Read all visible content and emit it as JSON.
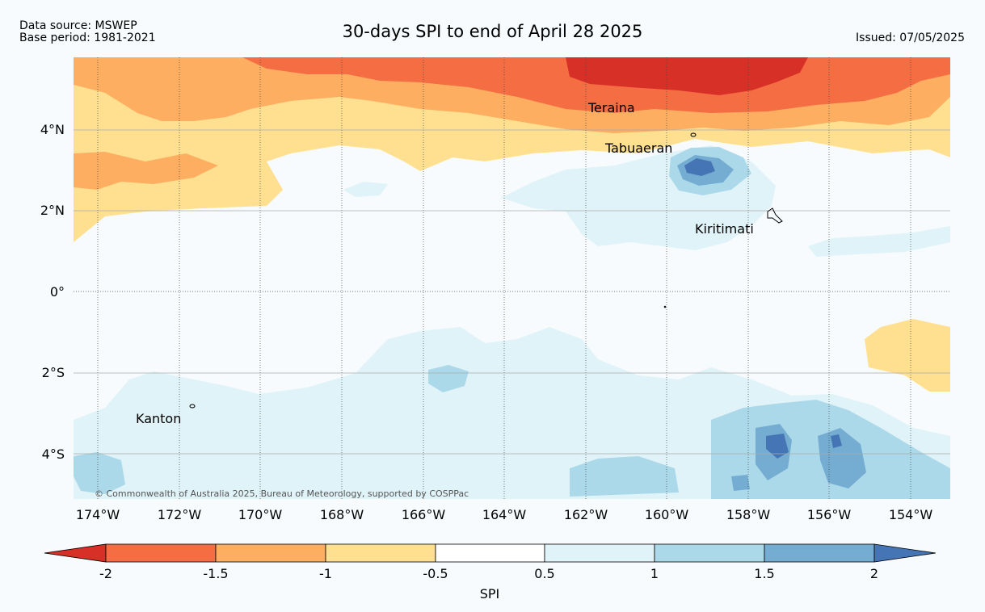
{
  "header": {
    "data_source": "Data source: MSWEP",
    "base_period": "Base period: 1981-2021",
    "title": "30-days SPI to end of April 28 2025",
    "issued": "Issued: 07/05/2025"
  },
  "map": {
    "lat_labels": [
      "4°N",
      "2°N",
      "0°",
      "2°S",
      "4°S"
    ],
    "lon_labels": [
      "174°W",
      "172°W",
      "170°W",
      "168°W",
      "166°W",
      "164°W",
      "162°W",
      "160°W",
      "158°W",
      "156°W",
      "154°W"
    ],
    "places": [
      {
        "name": "Teraina"
      },
      {
        "name": "Tabuaeran"
      },
      {
        "name": "Kiritimati"
      },
      {
        "name": "Kanton"
      }
    ],
    "copyright": "© Commonwealth of Australia 2025, Bureau of Meteorology, supported by COSPPac"
  },
  "colorbar": {
    "label": "SPI",
    "ticks": [
      "-2",
      "-1.5",
      "-1",
      "-0.5",
      "0.5",
      "1",
      "1.5",
      "2"
    ],
    "colors": [
      "#d73027",
      "#f46d43",
      "#fdae61",
      "#fee090",
      "#ffffff",
      "#e0f3f8",
      "#abd9e9",
      "#74add1",
      "#4575b4"
    ]
  }
}
